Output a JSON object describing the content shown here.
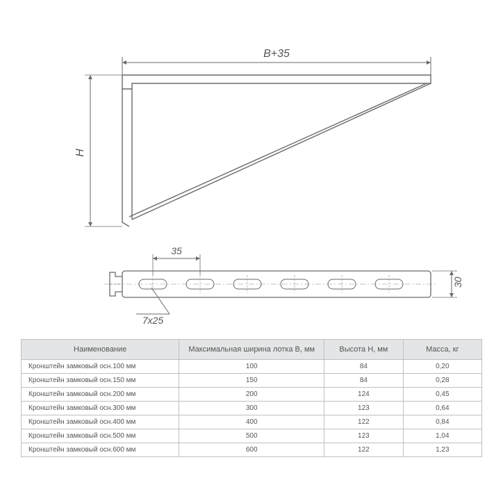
{
  "diagram": {
    "label_top": "B+35",
    "label_left": "H",
    "label_35": "35",
    "label_7x25": "7x25",
    "label_30": "30",
    "stroke": "#6a6a6a",
    "thin_stroke": "#8a8a8a",
    "fontsize": 16,
    "fontsize_small": 14
  },
  "table": {
    "columns": [
      "Наименование",
      "Максимальная ширина лотка B, мм",
      "Высота H, мм",
      "Масса, кг"
    ],
    "rows": [
      [
        "Кронштейн замковый осн.100 мм",
        "100",
        "84",
        "0,20"
      ],
      [
        "Кронштейн замковый осн.150 мм",
        "150",
        "84",
        "0,28"
      ],
      [
        "Кронштейн замковый осн.200 мм",
        "200",
        "124",
        "0,45"
      ],
      [
        "Кронштейн замковый осн.300 мм",
        "300",
        "123",
        "0,64"
      ],
      [
        "Кронштейн замковый осн.400 мм",
        "400",
        "122",
        "0,84"
      ],
      [
        "Кронштейн замковый осн.500 мм",
        "500",
        "123",
        "1,04"
      ],
      [
        "Кронштейн замковый осн.600 мм",
        "600",
        "122",
        "1,23"
      ]
    ],
    "header_bg": "#e4e5e6",
    "border_color": "#bfbfbf",
    "text_color": "#555555"
  }
}
